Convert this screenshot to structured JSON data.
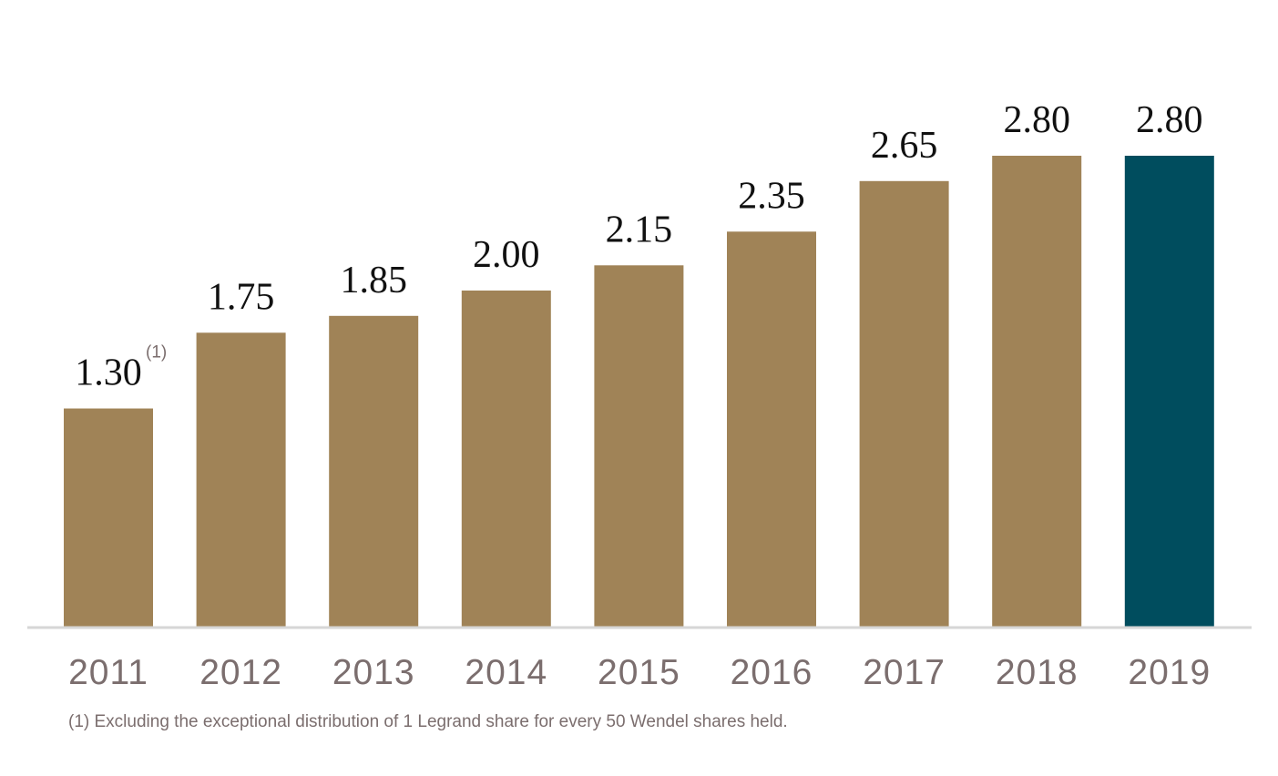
{
  "chart_data": {
    "type": "bar",
    "categories": [
      "2011",
      "2012",
      "2013",
      "2014",
      "2015",
      "2016",
      "2017",
      "2018",
      "2019"
    ],
    "values": [
      1.3,
      1.75,
      1.85,
      2.0,
      2.15,
      2.35,
      2.65,
      2.8,
      2.8
    ],
    "value_labels": [
      "1.30",
      "1.75",
      "1.85",
      "2.00",
      "2.15",
      "2.35",
      "2.65",
      "2.80",
      "2.80"
    ],
    "value_superscripts": [
      "(1)",
      "",
      "",
      "",
      "",
      "",
      "",
      "",
      ""
    ],
    "highlight_category": "2019",
    "colors": {
      "bar": "#a08357",
      "highlight": "#004d5e",
      "axis": "#d6d6d6",
      "value_text": "#111111",
      "tick_text": "#7b6e6e"
    },
    "title": "",
    "xlabel": "",
    "ylabel": "",
    "ylim": [
      0,
      3.2
    ],
    "grid": false,
    "legend": "none",
    "footnote": "(1) Excluding the exceptional distribution of 1 Legrand share for every 50 Wendel shares held."
  }
}
